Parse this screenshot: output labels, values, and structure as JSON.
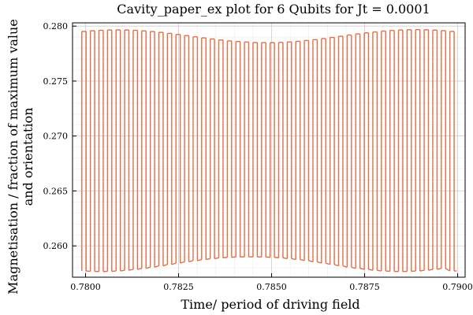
{
  "chart_data": {
    "type": "line",
    "title": "Cavity_paper_ex plot for 6 Qubits for Jt = 0.0001",
    "xlabel": "Time/ period of driving field",
    "ylabel_lines": [
      "Magnetisation / fraction of maximum value",
      "and orientation"
    ],
    "xlim": [
      0.77965,
      0.7902
    ],
    "ylim": [
      0.25715,
      0.2803
    ],
    "x_ticks": [
      0.78,
      0.7825,
      0.785,
      0.7875,
      0.79
    ],
    "x_tick_labels": [
      "0.7800",
      "0.7825",
      "0.7850",
      "0.7875",
      "0.7900"
    ],
    "y_ticks": [
      0.26,
      0.265,
      0.27,
      0.275,
      0.28
    ],
    "y_tick_labels": [
      "0.260",
      "0.265",
      "0.270",
      "0.275",
      "0.280"
    ],
    "grid": true,
    "minor_grid": true,
    "legend": "none",
    "line_color": "#e26f46",
    "series": [
      {
        "x": [
          0.7799,
          0.78013,
          0.78036,
          0.78059,
          0.78082,
          0.78105,
          0.78128,
          0.78151,
          0.78174,
          0.78197,
          0.7822,
          0.78243,
          0.78266,
          0.78289,
          0.78312,
          0.78335,
          0.78358,
          0.78381,
          0.78404,
          0.78427,
          0.7845,
          0.78473,
          0.78496,
          0.78519,
          0.78542,
          0.78565,
          0.78588,
          0.78611,
          0.78634,
          0.78657,
          0.7868,
          0.78703,
          0.78726,
          0.78749,
          0.78772,
          0.78795,
          0.78818,
          0.78841,
          0.78864,
          0.78887,
          0.7891,
          0.78933,
          0.78956,
          0.78979
        ],
        "upper": [
          0.27952,
          0.27958,
          0.27962,
          0.27965,
          0.27966,
          0.27965,
          0.27962,
          0.27957,
          0.27951,
          0.27943,
          0.27934,
          0.27924,
          0.27914,
          0.27903,
          0.27893,
          0.27883,
          0.27874,
          0.27866,
          0.2786,
          0.27855,
          0.27851,
          0.2785,
          0.2785,
          0.27852,
          0.27856,
          0.27862,
          0.27869,
          0.27877,
          0.27887,
          0.27897,
          0.27908,
          0.27919,
          0.27929,
          0.27939,
          0.27947,
          0.27955,
          0.27961,
          0.27965,
          0.27967,
          0.27968,
          0.27967,
          0.27964,
          0.27959,
          0.27952
        ],
        "lower": [
          0.25772,
          0.25768,
          0.25767,
          0.25768,
          0.25772,
          0.25778,
          0.25786,
          0.25795,
          0.25806,
          0.25818,
          0.25831,
          0.25843,
          0.25855,
          0.25866,
          0.25876,
          0.25884,
          0.25891,
          0.25896,
          0.25899,
          0.259,
          0.259,
          0.25899,
          0.25896,
          0.25891,
          0.25884,
          0.25876,
          0.25866,
          0.25855,
          0.25843,
          0.25831,
          0.25818,
          0.25806,
          0.25795,
          0.25786,
          0.25778,
          0.25772,
          0.25768,
          0.25767,
          0.25768,
          0.25772,
          0.25778,
          0.25786,
          0.25795,
          0.25772
        ]
      }
    ]
  }
}
